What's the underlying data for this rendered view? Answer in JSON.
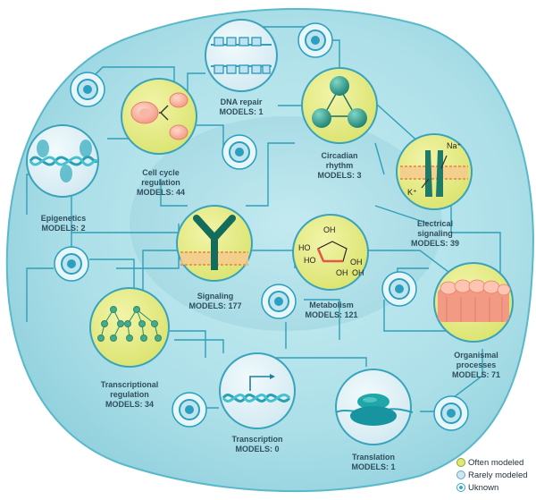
{
  "colors": {
    "cell_fill": "#a9dfe7",
    "cell_stroke": "#4fb3c6",
    "nucleus_fill": "#9fd6e0",
    "connector": "#2f9fb8",
    "often_fill": "#e7ed8f",
    "often_stroke": "#3aa3bc",
    "rare_fill": "#d8eef4",
    "unknown_ring": "#2a9fc0",
    "label_text": "#2f4f5d"
  },
  "nodes": [
    {
      "id": "dna-repair",
      "name": "DNA repair",
      "count_label": "MODELS: 1",
      "count": 1,
      "status": "rarely",
      "icon": "dna-repair-icon"
    },
    {
      "id": "cell-cycle",
      "name": "Cell cycle\nregulation",
      "count_label": "MODELS: 44",
      "count": 44,
      "status": "often",
      "icon": "cell-division-icon"
    },
    {
      "id": "circadian",
      "name": "Circadian\nrhythm",
      "count_label": "MODELS: 3",
      "count": 3,
      "status": "often",
      "icon": "circadian-cycle-icon"
    },
    {
      "id": "epigenetics",
      "name": "Epigenetics",
      "count_label": "MODELS: 2",
      "count": 2,
      "status": "rarely",
      "icon": "chromatin-icon"
    },
    {
      "id": "electrical",
      "name": "Electrical\nsignaling",
      "count_label": "MODELS: 39",
      "count": 39,
      "status": "often",
      "icon": "ion-channel-icon"
    },
    {
      "id": "signaling",
      "name": "Signaling",
      "count_label": "MODELS: 177",
      "count": 177,
      "status": "often",
      "icon": "receptor-icon"
    },
    {
      "id": "metabolism",
      "name": "Metabolism",
      "count_label": "MODELS: 121",
      "count": 121,
      "status": "often",
      "icon": "glucose-molecule-icon"
    },
    {
      "id": "organismal",
      "name": "Organismal\nprocesses",
      "count_label": "MODELS: 71",
      "count": 71,
      "status": "often",
      "icon": "tissue-icon"
    },
    {
      "id": "transcriptional-regulation",
      "name": "Transcriptional\nregulation",
      "count_label": "MODELS: 34",
      "count": 34,
      "status": "often",
      "icon": "gene-network-icon"
    },
    {
      "id": "transcription",
      "name": "Transcription",
      "count_label": "MODELS: 0",
      "count": 0,
      "status": "rarely",
      "icon": "transcription-icon"
    },
    {
      "id": "translation",
      "name": "Translation",
      "count_label": "MODELS: 1",
      "count": 1,
      "status": "rarely",
      "icon": "ribosome-icon"
    }
  ],
  "molecule_text": {
    "oh": "OH",
    "ho": "HO",
    "na": "Na⁺",
    "k": "K⁺"
  },
  "legend": [
    {
      "key": "often",
      "label": "Often modeled"
    },
    {
      "key": "rarely",
      "label": "Rarely modeled"
    },
    {
      "key": "unknown",
      "label": "Uknown"
    }
  ]
}
